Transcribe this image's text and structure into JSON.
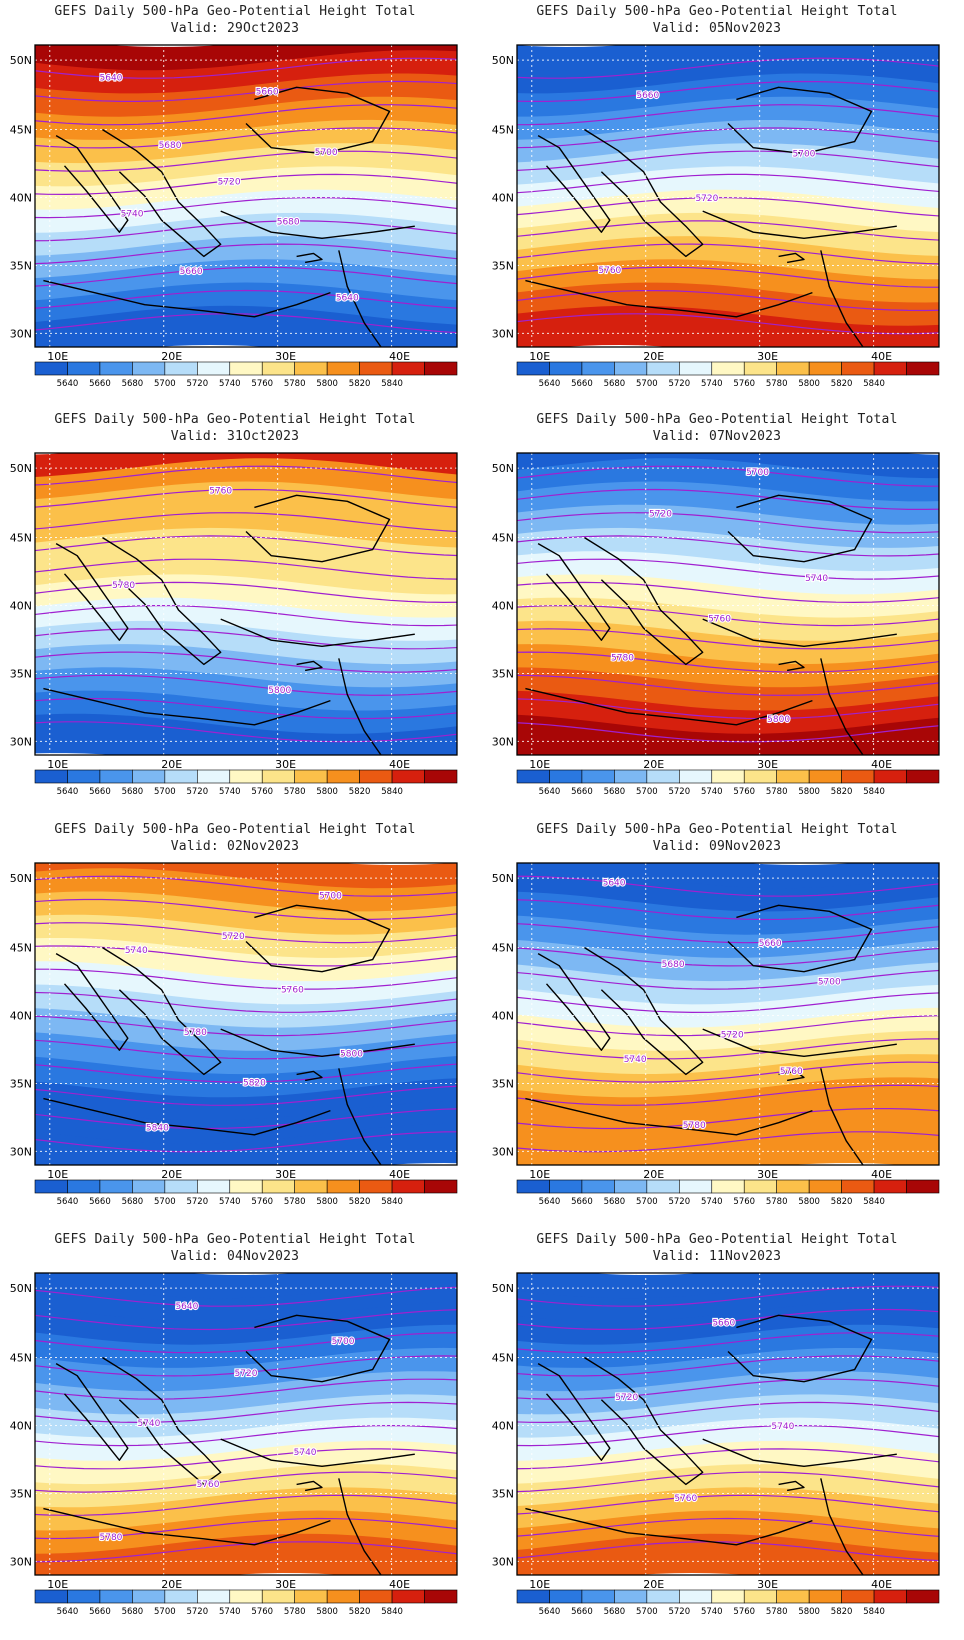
{
  "colorbar": {
    "labels": [
      "5640",
      "5660",
      "5680",
      "5700",
      "5720",
      "5740",
      "5760",
      "5780",
      "5800",
      "5820",
      "5840"
    ],
    "colors": [
      "#1a5fd1",
      "#2a78e0",
      "#4a95ec",
      "#7db8f3",
      "#b6ddf9",
      "#e6f7fd",
      "#fff8c4",
      "#fce48a",
      "#fbc04a",
      "#f6901e",
      "#ea5a12",
      "#d6200e",
      "#a80606"
    ]
  },
  "contour_color": "#a020d0",
  "axes": {
    "lon_ticks": [
      "10E",
      "20E",
      "30E",
      "40E"
    ],
    "lat_ticks": [
      "50N",
      "45N",
      "40N",
      "35N",
      "30N"
    ]
  },
  "panels": [
    {
      "title": "GEFS Daily 500-hPa Geo-Potential Height Total",
      "valid": "Valid: 29Oct2023",
      "levels": [
        13,
        12,
        11,
        10,
        9,
        8,
        7,
        6,
        5,
        4,
        3,
        2,
        1
      ],
      "contour_labels": [
        "5640",
        "5660",
        "5680",
        "5700",
        "5720",
        "5740",
        "5680",
        "5660",
        "5640"
      ]
    },
    {
      "title": "GEFS Daily 500-hPa Geo-Potential Height Total",
      "valid": "Valid: 05Nov2023",
      "levels": [
        1,
        1,
        2,
        3,
        4,
        5,
        6,
        7,
        8,
        9,
        10,
        11,
        12
      ],
      "contour_labels": [
        "5660",
        "5700",
        "5720",
        "5760"
      ]
    },
    {
      "title": "GEFS Daily 500-hPa Geo-Potential Height Total",
      "valid": "Valid: 31Oct2023",
      "levels": [
        12,
        10,
        9,
        9,
        8,
        8,
        7,
        6,
        5,
        4,
        3,
        2,
        1
      ],
      "contour_labels": [
        "5760",
        "5780",
        "5800"
      ]
    },
    {
      "title": "GEFS Daily 500-hPa Geo-Potential Height Total",
      "valid": "Valid: 07Nov2023",
      "levels": [
        1,
        2,
        3,
        4,
        5,
        6,
        7,
        8,
        9,
        10,
        11,
        12,
        13
      ],
      "contour_labels": [
        "5700",
        "5720",
        "5740",
        "5760",
        "5780",
        "5800"
      ]
    },
    {
      "title": "GEFS Daily 500-hPa Geo-Potential Height Total",
      "valid": "Valid: 02Nov2023",
      "levels": [
        11,
        10,
        9,
        8,
        7,
        6,
        5,
        4,
        3,
        2,
        1,
        1,
        1
      ],
      "contour_labels": [
        "5700",
        "5720",
        "5740",
        "5760",
        "5780",
        "5800",
        "5820",
        "5840"
      ]
    },
    {
      "title": "GEFS Daily 500-hPa Geo-Potential Height Total",
      "valid": "Valid: 09Nov2023",
      "levels": [
        1,
        1,
        2,
        3,
        4,
        5,
        6,
        7,
        8,
        9,
        10,
        10,
        10
      ],
      "contour_labels": [
        "5640",
        "5660",
        "5680",
        "5700",
        "5720",
        "5740",
        "5760",
        "5780"
      ]
    },
    {
      "title": "GEFS Daily 500-hPa Geo-Potential Height Total",
      "valid": "Valid: 04Nov2023",
      "levels": [
        1,
        1,
        1,
        2,
        3,
        4,
        5,
        6,
        7,
        8,
        9,
        10,
        11
      ],
      "contour_labels": [
        "5640",
        "5700",
        "5720",
        "5740",
        "5740",
        "5760",
        "5780"
      ]
    },
    {
      "title": "GEFS Daily 500-hPa Geo-Potential Height Total",
      "valid": "Valid: 11Nov2023",
      "levels": [
        1,
        1,
        1,
        2,
        3,
        4,
        5,
        6,
        7,
        8,
        9,
        10,
        11
      ],
      "contour_labels": [
        "5660",
        "5720",
        "5740",
        "5760"
      ]
    }
  ]
}
